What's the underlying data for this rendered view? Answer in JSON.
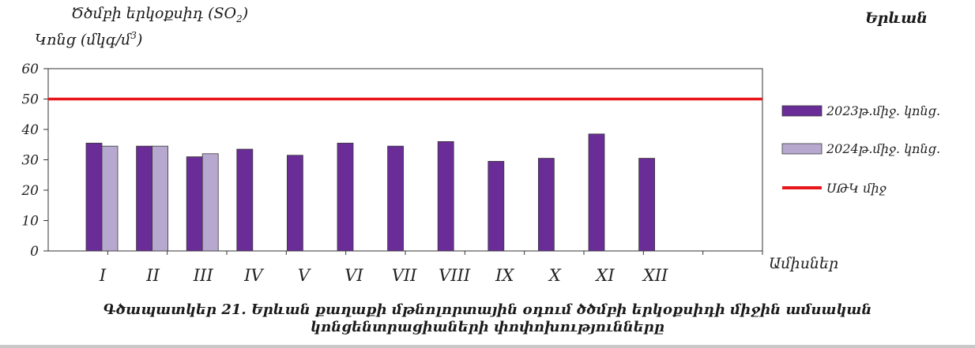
{
  "chart_data": {
    "type": "bar",
    "title": "Ծծմբի երկօքսիդ (SO₂)",
    "title_main": "Ծծմբի երկօքսիդ (SO",
    "title_sub": "2",
    "title_end": ")",
    "ylabel": "Կոնց (մկգ/մ³)",
    "ylabel_main": "Կոնց (մկգ/մ",
    "ylabel_sup": "3",
    "ylabel_end": ")",
    "xlabel": "Ամիսներ",
    "city": "Երևան",
    "categories": [
      "I",
      "II",
      "III",
      "IV",
      "V",
      "VI",
      "VII",
      "VIII",
      "IX",
      "X",
      "XI",
      "XII"
    ],
    "series": [
      {
        "name": "2023թ.միջ. կոնց.",
        "color": "#6a2c96",
        "values": [
          35.5,
          34.5,
          31,
          33.5,
          31.5,
          35.5,
          34.5,
          36,
          29.5,
          30.5,
          38.5,
          30.5
        ]
      },
      {
        "name": "2024թ.միջ. կոնց.",
        "color": "#b7a8cf",
        "values": [
          34.5,
          34.5,
          32,
          null,
          null,
          null,
          null,
          null,
          null,
          null,
          null,
          null
        ]
      }
    ],
    "reference_line": {
      "name": "ՍԹԿ միջ",
      "value": 50,
      "color": "#e8161b"
    },
    "ylim": [
      0,
      60
    ],
    "yticks": [
      "0",
      "10",
      "20",
      "30",
      "40",
      "50",
      "60"
    ],
    "legend_position": "right",
    "grid": false
  },
  "caption_line1": "Գծապատկեր 21. Երևան քաղաքի մթնոլորտային օդում ծծմբի երկօքսիդի միջին ամսական",
  "caption_line2": "կոնցենտրացիաների փոփոխությունները"
}
